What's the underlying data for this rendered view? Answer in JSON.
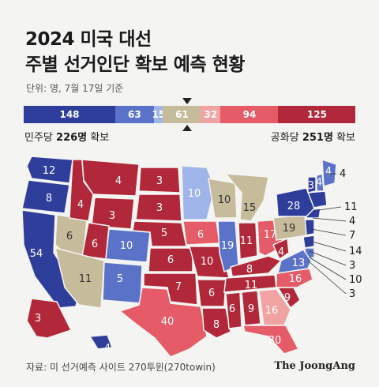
{
  "header": {
    "title_line1": "2024 미국 대선",
    "title_line2": "주별 선거인단 확보 예측 현황",
    "unit_note": "단위: 명, 7월 17일 기준"
  },
  "colors": {
    "solid_dem": "#2f3d9b",
    "likely_dem": "#5b72c9",
    "lean_dem": "#9fb4e8",
    "tossup": "#c6bb9a",
    "lean_rep": "#f1a3a3",
    "likely_rep": "#e55b67",
    "solid_rep": "#b1283a"
  },
  "chart_data": {
    "type": "bar",
    "segments": [
      {
        "label": "148",
        "value": 148,
        "color": "#2f3d9b"
      },
      {
        "label": "63",
        "value": 63,
        "color": "#5b72c9"
      },
      {
        "label": "15",
        "value": 15,
        "color": "#9fb4e8"
      },
      {
        "label": "61",
        "value": 61,
        "color": "#c6bb9a"
      },
      {
        "label": "32",
        "value": 32,
        "color": "#f1a3a3"
      },
      {
        "label": "94",
        "value": 94,
        "color": "#e55b67"
      },
      {
        "label": "125",
        "value": 125,
        "color": "#b1283a"
      }
    ],
    "dem_secured_label": "민주당",
    "dem_secured_value": "226명",
    "dem_secured_suffix": "확보",
    "rep_secured_label": "공화당",
    "rep_secured_value": "251명",
    "rep_secured_suffix": "확보",
    "state_labels": [
      {
        "state": "WA",
        "votes": "12",
        "color": "#2f3d9b"
      },
      {
        "state": "OR",
        "votes": "8",
        "color": "#2f3d9b"
      },
      {
        "state": "CA",
        "votes": "54",
        "color": "#2f3d9b"
      },
      {
        "state": "NV",
        "votes": "6",
        "color": "#c6bb9a"
      },
      {
        "state": "ID",
        "votes": "4",
        "color": "#b1283a"
      },
      {
        "state": "MT",
        "votes": "4",
        "color": "#b1283a"
      },
      {
        "state": "WY",
        "votes": "3",
        "color": "#b1283a"
      },
      {
        "state": "UT",
        "votes": "6",
        "color": "#b1283a"
      },
      {
        "state": "AZ",
        "votes": "11",
        "color": "#c6bb9a"
      },
      {
        "state": "CO",
        "votes": "10",
        "color": "#5b72c9"
      },
      {
        "state": "NM",
        "votes": "5",
        "color": "#5b72c9"
      },
      {
        "state": "ND",
        "votes": "3",
        "color": "#b1283a"
      },
      {
        "state": "SD",
        "votes": "3",
        "color": "#b1283a"
      },
      {
        "state": "NE",
        "votes": "5",
        "color": "#b1283a"
      },
      {
        "state": "KS",
        "votes": "6",
        "color": "#b1283a"
      },
      {
        "state": "OK",
        "votes": "7",
        "color": "#b1283a"
      },
      {
        "state": "TX",
        "votes": "40",
        "color": "#e55b67"
      },
      {
        "state": "MN",
        "votes": "10",
        "color": "#9fb4e8"
      },
      {
        "state": "IA",
        "votes": "6",
        "color": "#e55b67"
      },
      {
        "state": "MO",
        "votes": "10",
        "color": "#b1283a"
      },
      {
        "state": "AR",
        "votes": "6",
        "color": "#b1283a"
      },
      {
        "state": "LA",
        "votes": "8",
        "color": "#b1283a"
      },
      {
        "state": "WI",
        "votes": "10",
        "color": "#c6bb9a"
      },
      {
        "state": "IL",
        "votes": "19",
        "color": "#5b72c9"
      },
      {
        "state": "MI",
        "votes": "15",
        "color": "#c6bb9a"
      },
      {
        "state": "IN",
        "votes": "11",
        "color": "#b1283a"
      },
      {
        "state": "OH",
        "votes": "17",
        "color": "#e55b67"
      },
      {
        "state": "KY",
        "votes": "8",
        "color": "#b1283a"
      },
      {
        "state": "TN",
        "votes": "11",
        "color": "#b1283a"
      },
      {
        "state": "MS",
        "votes": "6",
        "color": "#b1283a"
      },
      {
        "state": "AL",
        "votes": "9",
        "color": "#b1283a"
      },
      {
        "state": "GA",
        "votes": "16",
        "color": "#f1a3a3"
      },
      {
        "state": "FL",
        "votes": "30",
        "color": "#e55b67"
      },
      {
        "state": "SC",
        "votes": "9",
        "color": "#b1283a"
      },
      {
        "state": "NC",
        "votes": "16",
        "color": "#e55b67"
      },
      {
        "state": "VA",
        "votes": "13",
        "color": "#5b72c9"
      },
      {
        "state": "WV",
        "votes": "4",
        "color": "#b1283a"
      },
      {
        "state": "PA",
        "votes": "19",
        "color": "#c6bb9a"
      },
      {
        "state": "NY",
        "votes": "28",
        "color": "#2f3d9b"
      },
      {
        "state": "VT",
        "votes": "3",
        "color": "#2f3d9b"
      },
      {
        "state": "NH",
        "votes": "4",
        "color": "#5b72c9"
      },
      {
        "state": "ME",
        "votes": "4",
        "color": "#5b72c9"
      },
      {
        "state": "AK",
        "votes": "3",
        "color": "#b1283a"
      },
      {
        "state": "HI",
        "votes": "4",
        "color": "#2f3d9b"
      }
    ],
    "callouts": [
      "4",
      "11",
      "4",
      "7",
      "14",
      "3",
      "10",
      "3"
    ]
  },
  "footer": {
    "source": "자료: 미 선거예측 사이트 270투윈(270towin)",
    "logo": "The JoongAng"
  }
}
